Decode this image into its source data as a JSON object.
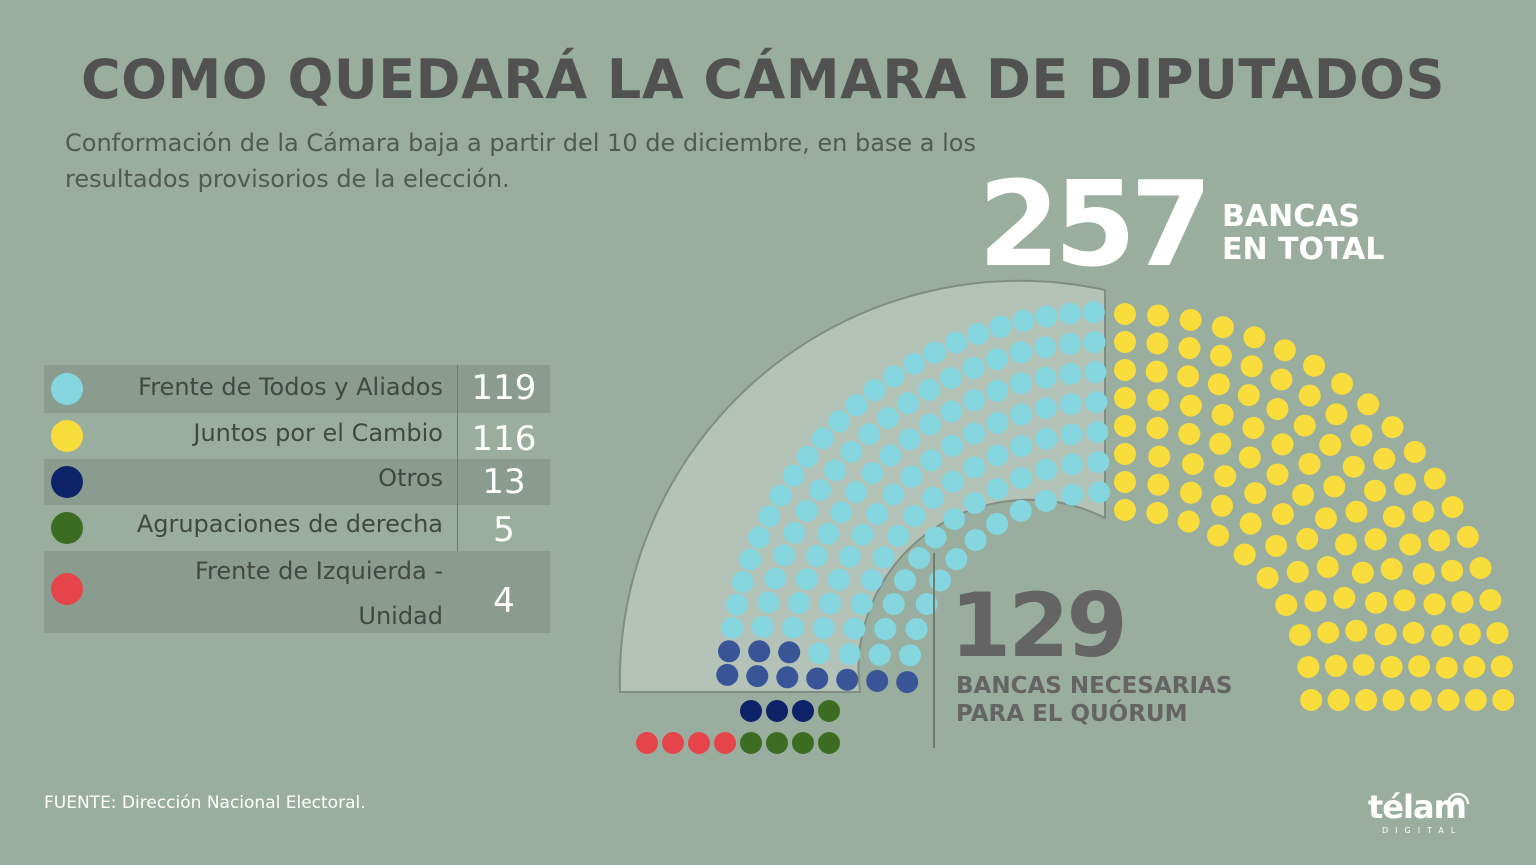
{
  "title": "COMO QUEDARÁ LA CÁMARA DE DIPUTADOS",
  "subtitle": "Conformación de la Cámara baja a partir del 10 de diciembre, en base a los resultados provisorios de la elección.",
  "total": {
    "value": "257",
    "label_line1": "BANCAS",
    "label_line2": "EN TOTAL"
  },
  "quorum": {
    "value": "129",
    "label_line1": "BANCAS NECESARIAS",
    "label_line2": "PARA EL QUÓRUM"
  },
  "legend": [
    {
      "name": "Frente de Todos y Aliados",
      "value": "119",
      "color": "#86d6e0"
    },
    {
      "name": "Juntos por el Cambio",
      "value": "116",
      "color": "#f8dd3c"
    },
    {
      "name": "Otros",
      "value": "13",
      "color": "#0e2268"
    },
    {
      "name": "Agrupaciones de derecha",
      "value": "5",
      "color": "#3c6b22"
    },
    {
      "name": "Frente de Izquierda -",
      "name_line2": "Unidad",
      "value": "4",
      "color": "#e5454a"
    }
  ],
  "source": "FUENTE:  Dirección Nacional Electoral.",
  "logo": {
    "word": "télam",
    "sub": "DIGITAL"
  },
  "chart_data": {
    "type": "parliament",
    "title": "COMO QUEDARÁ LA CÁMARA DE DIPUTADOS",
    "total_seats": 257,
    "quorum": 129,
    "categories": [
      "Frente de Todos y Aliados",
      "Juntos por el Cambio",
      "Otros",
      "Agrupaciones de derecha",
      "Frente de Izquierda - Unidad"
    ],
    "values": [
      119,
      116,
      13,
      5,
      4
    ],
    "colors": [
      "#86d6e0",
      "#f8dd3c",
      "#0e2268",
      "#3c6b22",
      "#e5454a"
    ]
  }
}
